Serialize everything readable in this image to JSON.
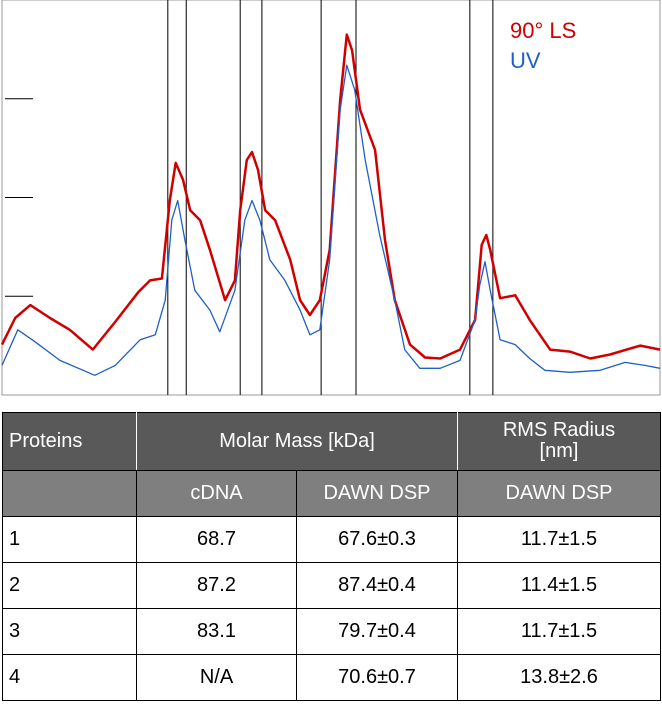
{
  "chart_data": {
    "type": "line",
    "xlim": [
      0,
      100
    ],
    "ylim": [
      0,
      4
    ],
    "yticks": [
      1,
      2,
      3
    ],
    "regions": [
      [
        25.2,
        28.0
      ],
      [
        36.2,
        39.5
      ],
      [
        48.5,
        53.8
      ],
      [
        71.1,
        74.6
      ]
    ],
    "legend": "top-right",
    "series": [
      {
        "name": "90° LS",
        "color": "#d00000",
        "x": [
          0,
          2.0,
          4.3,
          7.3,
          10.3,
          13.8,
          17.2,
          20.7,
          22.5,
          24.3,
          25.5,
          26.4,
          27.5,
          28.6,
          30.1,
          31.6,
          33.9,
          35.4,
          36.2,
          37.2,
          38.0,
          38.9,
          40.0,
          41.5,
          43.8,
          45.3,
          46.8,
          48.3,
          49.8,
          51.4,
          52.4,
          53.2,
          54.4,
          56.7,
          58.2,
          59.7,
          62.0,
          64.3,
          66.6,
          69.6,
          71.9,
          72.9,
          73.6,
          74.2,
          75.7,
          78.0,
          80.2,
          83.3,
          86.3,
          89.4,
          92.4,
          97.0,
          100
        ],
        "values": [
          0.51,
          0.78,
          0.91,
          0.78,
          0.66,
          0.46,
          0.74,
          1.04,
          1.16,
          1.18,
          1.97,
          2.35,
          2.18,
          1.87,
          1.77,
          1.47,
          0.96,
          1.16,
          1.87,
          2.38,
          2.46,
          2.28,
          1.87,
          1.77,
          1.37,
          0.96,
          0.81,
          0.96,
          1.47,
          2.99,
          3.65,
          3.49,
          2.89,
          2.48,
          1.57,
          0.96,
          0.51,
          0.38,
          0.37,
          0.46,
          0.76,
          1.52,
          1.62,
          1.47,
          0.98,
          1.01,
          0.76,
          0.46,
          0.44,
          0.37,
          0.41,
          0.5,
          0.46
        ]
      },
      {
        "name": "UV",
        "color": "#1f5fc8",
        "x": [
          0,
          2.4,
          5.0,
          8.8,
          14.1,
          17.2,
          21.0,
          23.3,
          24.8,
          25.8,
          26.7,
          27.8,
          29.3,
          31.6,
          33.1,
          35.4,
          36.9,
          38.0,
          39.2,
          40.7,
          43.0,
          45.3,
          46.8,
          48.3,
          49.8,
          51.4,
          52.4,
          53.6,
          55.2,
          57.4,
          59.7,
          61.2,
          63.5,
          66.6,
          69.6,
          71.9,
          72.6,
          73.4,
          74.2,
          75.7,
          78.0,
          80.2,
          82.5,
          86.3,
          90.9,
          94.7,
          97.7,
          100
        ],
        "values": [
          0.3,
          0.66,
          0.54,
          0.35,
          0.2,
          0.3,
          0.56,
          0.61,
          0.96,
          1.77,
          1.97,
          1.57,
          1.06,
          0.86,
          0.64,
          1.06,
          1.77,
          1.97,
          1.77,
          1.37,
          1.16,
          0.86,
          0.61,
          0.66,
          1.37,
          2.89,
          3.34,
          3.09,
          2.38,
          1.62,
          0.96,
          0.46,
          0.27,
          0.27,
          0.35,
          0.76,
          1.11,
          1.35,
          1.06,
          0.56,
          0.51,
          0.37,
          0.25,
          0.23,
          0.25,
          0.33,
          0.3,
          0.27
        ]
      }
    ]
  },
  "table": {
    "header_top": [
      "Proteins",
      "Molar Mass [kDa]",
      "RMS Radius [nm]"
    ],
    "header_sub": [
      "cDNA",
      "DAWN DSP",
      "DAWN DSP"
    ],
    "rows": [
      [
        "1",
        "68.7",
        "67.6±0.3",
        "11.7±1.5"
      ],
      [
        "2",
        "87.2",
        "87.4±0.4",
        "11.4±1.5"
      ],
      [
        "3",
        "83.1",
        "79.7±0.4",
        "11.7±1.5"
      ],
      [
        "4",
        "N/A",
        "70.6±0.7",
        "13.8±2.6"
      ]
    ]
  }
}
